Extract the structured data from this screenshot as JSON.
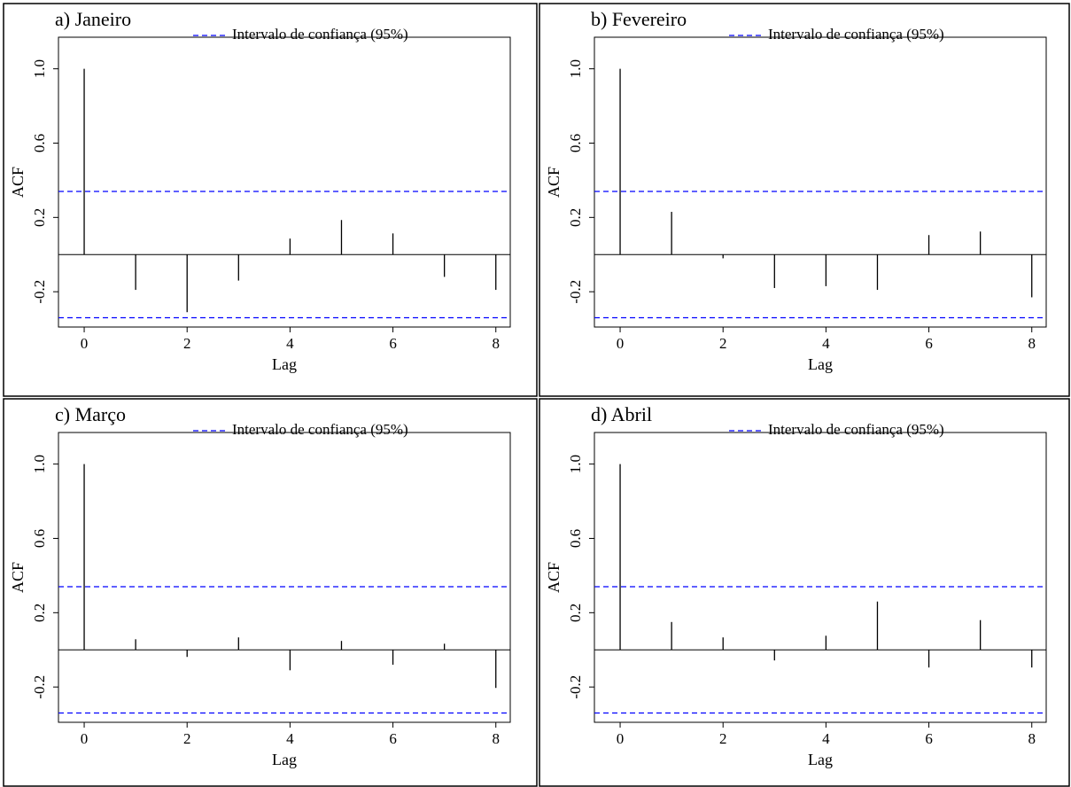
{
  "chart_data": [
    {
      "type": "bar",
      "title": "a) Janeiro",
      "xlabel": "Lag",
      "ylabel": "ACF",
      "color": "#000000",
      "x": [
        0,
        1,
        2,
        3,
        4,
        5,
        6,
        7,
        8
      ],
      "values": [
        1,
        -0.19,
        -0.31,
        -0.14,
        0.086,
        0.186,
        0.114,
        -0.12,
        -0.19
      ],
      "confidence": {
        "name": "Intervalo de confiança (95%)",
        "color": "#0000ff",
        "values": [
          0.34,
          -0.34
        ]
      },
      "xlim": [
        -0.5,
        8.28
      ],
      "xticks": [
        0,
        2,
        4,
        6,
        8
      ],
      "ylim": [
        -0.39,
        1.17
      ],
      "yticks": [
        {
          "value": 1,
          "label": "1.0"
        },
        0.6,
        0.2,
        -0.2
      ]
    },
    {
      "type": "bar",
      "title": "b) Fevereiro",
      "xlabel": "Lag",
      "ylabel": "ACF",
      "color": "#000000",
      "x": [
        0,
        1,
        2,
        3,
        4,
        5,
        6,
        7,
        8
      ],
      "values": [
        1,
        0.23,
        -0.02,
        -0.18,
        -0.17,
        -0.19,
        0.105,
        0.124,
        -0.23
      ],
      "confidence": {
        "name": "Intervalo de confiança (95%)",
        "color": "#0000ff",
        "values": [
          0.34,
          -0.34
        ]
      },
      "xlim": [
        -0.5,
        8.28
      ],
      "xticks": [
        0,
        2,
        4,
        6,
        8
      ],
      "ylim": [
        -0.39,
        1.17
      ],
      "yticks": [
        {
          "value": 1,
          "label": "1.0"
        },
        0.6,
        0.2,
        -0.2
      ]
    },
    {
      "type": "bar",
      "title": "c) Março",
      "xlabel": "Lag",
      "ylabel": "ACF",
      "color": "#000000",
      "x": [
        0,
        1,
        2,
        3,
        4,
        5,
        6,
        7,
        8
      ],
      "values": [
        1,
        0.057,
        -0.038,
        0.067,
        -0.11,
        0.048,
        -0.08,
        0.033,
        -0.205
      ],
      "confidence": {
        "name": "Intervalo de confiança (95%)",
        "color": "#0000ff",
        "values": [
          0.34,
          -0.34
        ]
      },
      "xlim": [
        -0.5,
        8.28
      ],
      "xticks": [
        0,
        2,
        4,
        6,
        8
      ],
      "ylim": [
        -0.39,
        1.17
      ],
      "yticks": [
        {
          "value": 1,
          "label": "1.0"
        },
        0.6,
        0.2,
        -0.2
      ]
    },
    {
      "type": "bar",
      "title": "d) Abril",
      "xlabel": "Lag",
      "ylabel": "ACF",
      "color": "#000000",
      "x": [
        0,
        1,
        2,
        3,
        4,
        5,
        6,
        7,
        8
      ],
      "values": [
        1,
        0.15,
        0.067,
        -0.057,
        0.076,
        0.26,
        -0.095,
        0.16,
        -0.095
      ],
      "confidence": {
        "name": "Intervalo de confiança (95%)",
        "color": "#0000ff",
        "values": [
          0.34,
          -0.34
        ]
      },
      "xlim": [
        -0.5,
        8.28
      ],
      "xticks": [
        0,
        2,
        4,
        6,
        8
      ],
      "ylim": [
        -0.39,
        1.17
      ],
      "yticks": [
        {
          "value": 1,
          "label": "1.0"
        },
        0.6,
        0.2,
        -0.2
      ]
    }
  ]
}
